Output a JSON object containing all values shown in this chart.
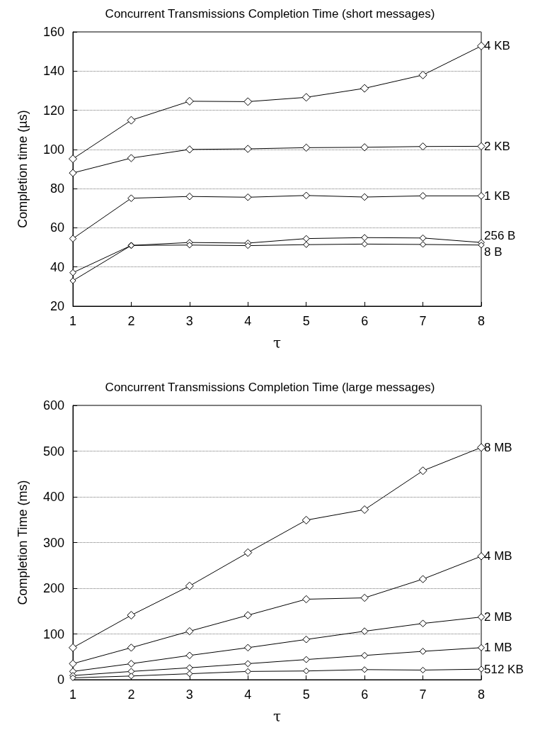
{
  "chart_data": [
    {
      "type": "line",
      "title": "Concurrent Transmissions Completion Time (short messages)",
      "xlabel": "τ",
      "ylabel": "Completion time (µs)",
      "x": [
        1,
        2,
        3,
        4,
        5,
        6,
        7,
        8
      ],
      "xlim": [
        1,
        8
      ],
      "xticks": [
        1,
        2,
        3,
        4,
        5,
        6,
        7,
        8
      ],
      "ylim": [
        20,
        160
      ],
      "yticks": [
        20,
        40,
        60,
        80,
        100,
        120,
        140,
        160
      ],
      "grid": "y",
      "marker": "diamond",
      "line_style": "solid",
      "legend": false,
      "series": [
        {
          "name": "4 KB",
          "color": "#000000",
          "values": [
            95.2,
            114.9,
            124.6,
            124.4,
            126.6,
            131.2,
            138.0,
            152.8
          ]
        },
        {
          "name": "2 KB",
          "color": "#000000",
          "values": [
            88.0,
            95.6,
            100.0,
            100.3,
            100.9,
            101.1,
            101.5,
            101.6
          ]
        },
        {
          "name": "1 KB",
          "color": "#000000",
          "values": [
            54.5,
            75.1,
            76.0,
            75.6,
            76.5,
            75.7,
            76.3,
            76.3
          ]
        },
        {
          "name": "256 B",
          "color": "#000000",
          "values": [
            37.1,
            51.0,
            52.5,
            52.2,
            54.5,
            55.0,
            54.8,
            52.5
          ]
        },
        {
          "name": "8 B",
          "color": "#000000",
          "values": [
            33.0,
            51.0,
            51.2,
            50.9,
            51.4,
            51.7,
            51.5,
            51.2
          ]
        }
      ]
    },
    {
      "type": "line",
      "title": "Concurrent Transmissions Completion Time (large messages)",
      "xlabel": "τ",
      "ylabel": "Completion Time (ms)",
      "x": [
        1,
        2,
        3,
        4,
        5,
        6,
        7,
        8
      ],
      "xlim": [
        1,
        8
      ],
      "xticks": [
        1,
        2,
        3,
        4,
        5,
        6,
        7,
        8
      ],
      "ylim": [
        0,
        600
      ],
      "yticks": [
        0,
        100,
        200,
        300,
        400,
        500,
        600
      ],
      "grid": "y",
      "marker": "diamond",
      "line_style": "solid",
      "legend": false,
      "series": [
        {
          "name": "8 MB",
          "color": "#000000",
          "values": [
            70,
            141,
            205,
            278,
            349,
            372,
            457,
            508
          ]
        },
        {
          "name": "4 MB",
          "color": "#000000",
          "values": [
            35,
            70,
            106,
            141,
            176,
            179,
            220,
            270
          ]
        },
        {
          "name": "2 MB",
          "color": "#000000",
          "values": [
            18,
            35,
            53,
            70,
            88,
            106,
            123,
            137
          ]
        },
        {
          "name": "1 MB",
          "color": "#000000",
          "values": [
            9,
            18,
            26,
            35,
            44,
            53,
            62,
            70
          ]
        },
        {
          "name": "512 KB",
          "color": "#000000",
          "values": [
            4,
            8,
            13,
            18,
            19,
            22,
            21,
            23
          ]
        }
      ]
    }
  ]
}
